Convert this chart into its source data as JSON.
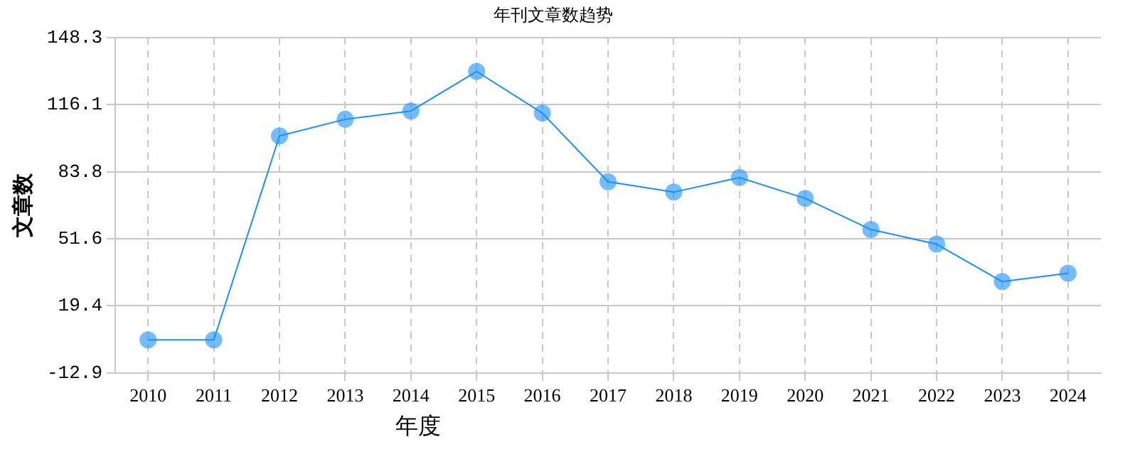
{
  "chart_data": {
    "type": "line",
    "title": "年刊文章数趋势",
    "xlabel": "年度",
    "ylabel": "文章数",
    "categories": [
      "2010",
      "2011",
      "2012",
      "2013",
      "2014",
      "2015",
      "2016",
      "2017",
      "2018",
      "2019",
      "2020",
      "2021",
      "2022",
      "2023",
      "2024"
    ],
    "series": [
      {
        "color": "#1890ff",
        "values": [
          3,
          3,
          101,
          109,
          113,
          132,
          112,
          79,
          74,
          81,
          71,
          56,
          49,
          31,
          35
        ]
      }
    ],
    "ylim": [
      -12.9,
      148.3
    ],
    "yticks": [
      -12.9,
      19.4,
      51.6,
      83.8,
      116.1,
      148.3
    ],
    "grid": true,
    "legend": false,
    "marker": "circle",
    "line_style": "solid"
  }
}
